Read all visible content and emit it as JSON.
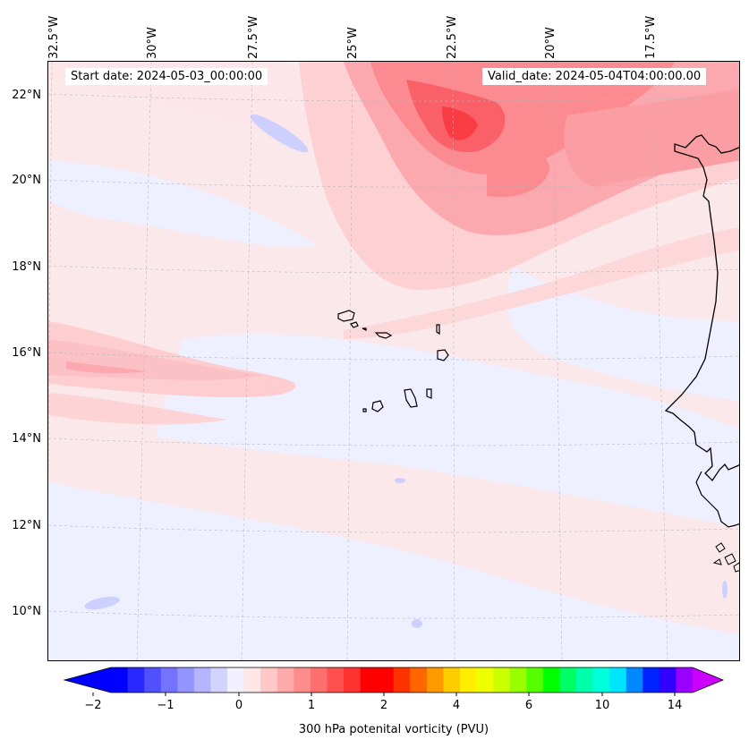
{
  "map": {
    "start_date_label": "Start date: 2024-05-03_00:00:00",
    "valid_date_label": "Valid_date: 2024-05-04T04:00:00.00",
    "lon_labels": [
      "32.5°W",
      "30°W",
      "27.5°W",
      "25°W",
      "22.5°W",
      "20°W",
      "17.5°W"
    ],
    "lat_labels": [
      "22°N",
      "20°N",
      "18°N",
      "16°N",
      "14°N",
      "12°N",
      "10°N"
    ],
    "region": "Cape Verde islands and West African coast",
    "lon_range": [
      -33,
      -15.5
    ],
    "lat_range": [
      9,
      23
    ]
  },
  "colorbar": {
    "label": "300 hPa potenital vorticity (PVU)",
    "ticks": [
      "−2",
      "−1",
      "0",
      "1",
      "2",
      "4",
      "6",
      "10",
      "14"
    ],
    "colors": [
      "#0000ff",
      "#2929ff",
      "#5050ff",
      "#7373ff",
      "#9494ff",
      "#b4b4ff",
      "#d3d3ff",
      "#f0f0ff",
      "#ffe6e6",
      "#ffc8c8",
      "#ffaaaa",
      "#ff8c8c",
      "#ff6e6e",
      "#ff5050",
      "#ff3232",
      "#ff0000",
      "#ff0000",
      "#ff3300",
      "#ff6600",
      "#ff9900",
      "#ffcc00",
      "#ffee00",
      "#eeff00",
      "#ccff00",
      "#99ff00",
      "#55ff00",
      "#00ff00",
      "#00ff66",
      "#00ffaa",
      "#00ffdd",
      "#00e5ff",
      "#0088ff",
      "#0022ff",
      "#3300ff",
      "#9900ff"
    ],
    "under_color": "#0000ff",
    "over_color": "#cc00ff"
  }
}
